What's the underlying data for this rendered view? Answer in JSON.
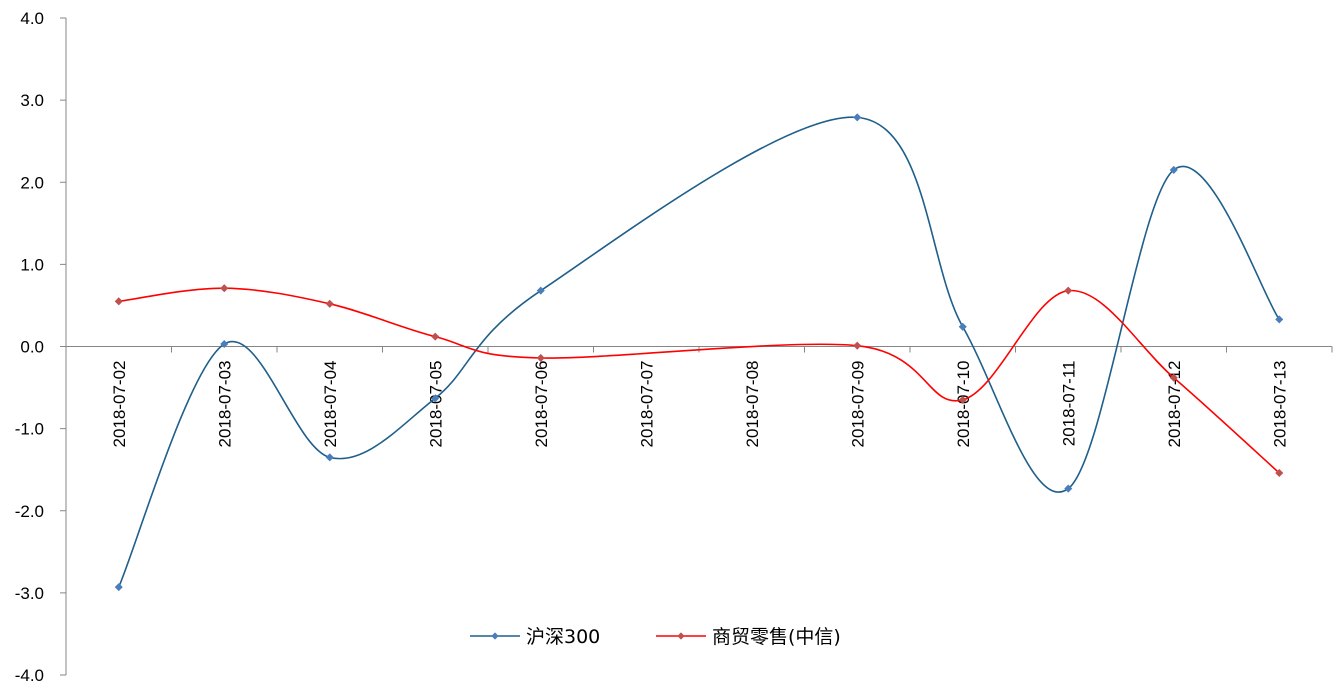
{
  "chart_data": {
    "type": "line",
    "smooth": true,
    "x": [
      "2018-07-02",
      "2018-07-03",
      "2018-07-04",
      "2018-07-05",
      "2018-07-06",
      "2018-07-07",
      "2018-07-08",
      "2018-07-09",
      "2018-07-10",
      "2018-07-11",
      "2018-07-12",
      "2018-07-13"
    ],
    "yticks": [
      "4.0",
      "3.0",
      "2.0",
      "1.0",
      "0.0",
      "-1.0",
      "-2.0",
      "-3.0",
      "-4.0"
    ],
    "ylim": [
      -4,
      4
    ],
    "grid": false,
    "legend_position": "bottom",
    "series": [
      {
        "name": "沪深300",
        "color": "#1f5f8b",
        "marker_color": "#4a7ebb",
        "values": [
          -2.93,
          0.03,
          -1.35,
          -0.63,
          0.68,
          null,
          null,
          2.79,
          0.24,
          -1.73,
          2.15,
          0.33
        ]
      },
      {
        "name": "商贸零售(中信)",
        "color": "#ff0000",
        "marker_color": "#c0504d",
        "values": [
          0.55,
          0.71,
          0.52,
          0.12,
          -0.14,
          null,
          null,
          0.01,
          -0.65,
          0.68,
          -0.38,
          -1.54
        ]
      }
    ]
  }
}
